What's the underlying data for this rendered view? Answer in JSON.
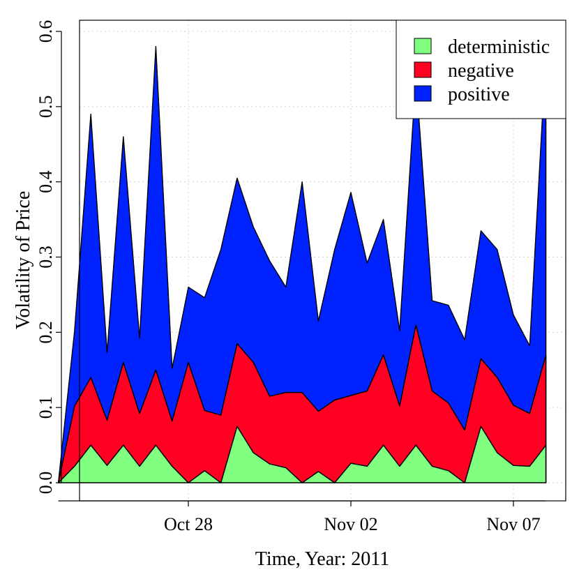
{
  "chart_data": {
    "type": "area",
    "stacked": true,
    "xlabel": "Time, Year: 2011",
    "ylabel": "Volatility of Price",
    "ylim": [
      0,
      0.6
    ],
    "yticks": [
      0.0,
      0.1,
      0.2,
      0.3,
      0.4,
      0.5,
      0.6
    ],
    "ytick_labels": [
      "0.0",
      "0.1",
      "0.2",
      "0.3",
      "0.4",
      "0.5",
      "0.6"
    ],
    "xlim": [
      "2011-10-24",
      "2011-11-08"
    ],
    "xticks": [
      {
        "date": "2011-10-28",
        "label": "Oct 28"
      },
      {
        "date": "2011-11-02",
        "label": "Nov 02"
      },
      {
        "date": "2011-11-07",
        "label": "Nov 07"
      }
    ],
    "grid": true,
    "legend_position": "top-right",
    "colors": {
      "deterministic": "#80ff80",
      "negative": "#ff0022",
      "positive": "#0022ff"
    },
    "series": [
      {
        "name": "deterministic",
        "color": "#80ff80",
        "x": [
          "2011-10-24 12:00",
          "2011-10-25 00:00",
          "2011-10-25 12:00",
          "2011-10-26 00:00",
          "2011-10-26 12:00",
          "2011-10-27 00:00",
          "2011-10-27 12:00",
          "2011-10-28 00:00",
          "2011-10-28 12:00",
          "2011-10-29 00:00",
          "2011-10-29 12:00",
          "2011-10-30 00:00",
          "2011-10-30 12:00",
          "2011-10-31 00:00",
          "2011-10-31 12:00",
          "2011-11-01 00:00",
          "2011-11-01 12:00",
          "2011-11-02 00:00",
          "2011-11-02 12:00",
          "2011-11-03 00:00",
          "2011-11-03 12:00",
          "2011-11-04 00:00",
          "2011-11-04 12:00",
          "2011-11-05 00:00",
          "2011-11-05 12:00",
          "2011-11-06 00:00",
          "2011-11-06 12:00",
          "2011-11-07 00:00",
          "2011-11-07 12:00",
          "2011-11-08 00:00"
        ],
        "values": [
          0.022,
          0.05,
          0.023,
          0.05,
          0.022,
          0.05,
          0.022,
          0.0,
          0.016,
          0.0,
          0.075,
          0.04,
          0.025,
          0.02,
          0.0,
          0.015,
          0.0,
          0.026,
          0.022,
          0.05,
          0.022,
          0.05,
          0.022,
          0.016,
          0.0,
          0.075,
          0.04,
          0.023,
          0.022,
          0.05
        ]
      },
      {
        "name": "negative",
        "color": "#ff0022",
        "x": [
          "2011-10-24 12:00",
          "2011-10-25 00:00",
          "2011-10-25 12:00",
          "2011-10-26 00:00",
          "2011-10-26 12:00",
          "2011-10-27 00:00",
          "2011-10-27 12:00",
          "2011-10-28 00:00",
          "2011-10-28 12:00",
          "2011-10-29 00:00",
          "2011-10-29 12:00",
          "2011-10-30 00:00",
          "2011-10-30 12:00",
          "2011-10-31 00:00",
          "2011-10-31 12:00",
          "2011-11-01 00:00",
          "2011-11-01 12:00",
          "2011-11-02 00:00",
          "2011-11-02 12:00",
          "2011-11-03 00:00",
          "2011-11-03 12:00",
          "2011-11-04 00:00",
          "2011-11-04 12:00",
          "2011-11-05 00:00",
          "2011-11-05 12:00",
          "2011-11-06 00:00",
          "2011-11-06 12:00",
          "2011-11-07 00:00",
          "2011-11-07 12:00",
          "2011-11-08 00:00"
        ],
        "values": [
          0.08,
          0.09,
          0.06,
          0.11,
          0.07,
          0.1,
          0.06,
          0.16,
          0.08,
          0.09,
          0.11,
          0.12,
          0.09,
          0.1,
          0.12,
          0.08,
          0.11,
          0.09,
          0.1,
          0.12,
          0.08,
          0.16,
          0.1,
          0.09,
          0.07,
          0.09,
          0.1,
          0.08,
          0.07,
          0.12
        ]
      },
      {
        "name": "positive",
        "color": "#0022ff",
        "x": [
          "2011-10-24 12:00",
          "2011-10-25 00:00",
          "2011-10-25 12:00",
          "2011-10-26 00:00",
          "2011-10-26 12:00",
          "2011-10-27 00:00",
          "2011-10-27 12:00",
          "2011-10-28 00:00",
          "2011-10-28 12:00",
          "2011-10-29 00:00",
          "2011-10-29 12:00",
          "2011-10-30 00:00",
          "2011-10-30 12:00",
          "2011-10-31 00:00",
          "2011-10-31 12:00",
          "2011-11-01 00:00",
          "2011-11-01 12:00",
          "2011-11-02 00:00",
          "2011-11-02 12:00",
          "2011-11-03 00:00",
          "2011-11-03 12:00",
          "2011-11-04 00:00",
          "2011-11-04 12:00",
          "2011-11-05 00:00",
          "2011-11-05 12:00",
          "2011-11-06 00:00",
          "2011-11-06 12:00",
          "2011-11-07 00:00",
          "2011-11-07 12:00",
          "2011-11-08 00:00"
        ],
        "values": [
          0.1,
          0.35,
          0.09,
          0.3,
          0.1,
          0.43,
          0.07,
          0.1,
          0.15,
          0.22,
          0.22,
          0.18,
          0.18,
          0.14,
          0.28,
          0.12,
          0.2,
          0.27,
          0.17,
          0.18,
          0.1,
          0.33,
          0.12,
          0.13,
          0.12,
          0.17,
          0.17,
          0.12,
          0.09,
          0.4
        ]
      }
    ]
  }
}
